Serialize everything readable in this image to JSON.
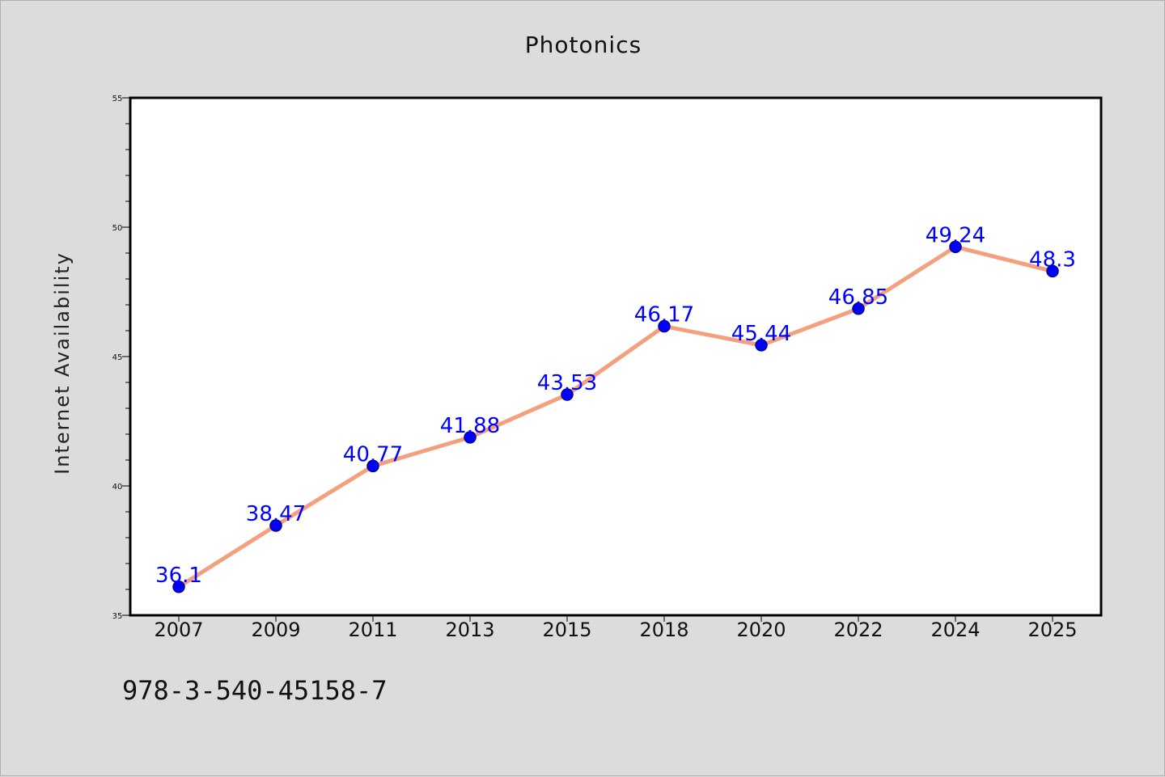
{
  "chart_data": {
    "type": "line",
    "title": "Photonics",
    "xlabel": "",
    "ylabel": "Internet Availability",
    "categories": [
      "2007",
      "2009",
      "2011",
      "2013",
      "2015",
      "2018",
      "2020",
      "2022",
      "2024",
      "2025"
    ],
    "series": [
      {
        "values": [
          36.1,
          38.47,
          40.77,
          41.88,
          43.53,
          46.17,
          45.44,
          46.85,
          49.24,
          48.3
        ],
        "labels": [
          "36.1",
          "38.47",
          "40.77",
          "41.88",
          "43.53",
          "46.17",
          "45.44",
          "46.85",
          "49.24",
          "48.3"
        ],
        "line_color": "#f4a07f",
        "marker_color": "#0000ff"
      }
    ],
    "ylim": [
      35,
      55
    ],
    "yticks": [
      "35",
      "40",
      "45",
      "50",
      "55"
    ],
    "grid": false,
    "plot_background": "#ffffff",
    "figure_background": "#dcdcdc",
    "data_label_color": "#0000ff"
  },
  "footer": {
    "text": "978-3-540-45158-7"
  }
}
